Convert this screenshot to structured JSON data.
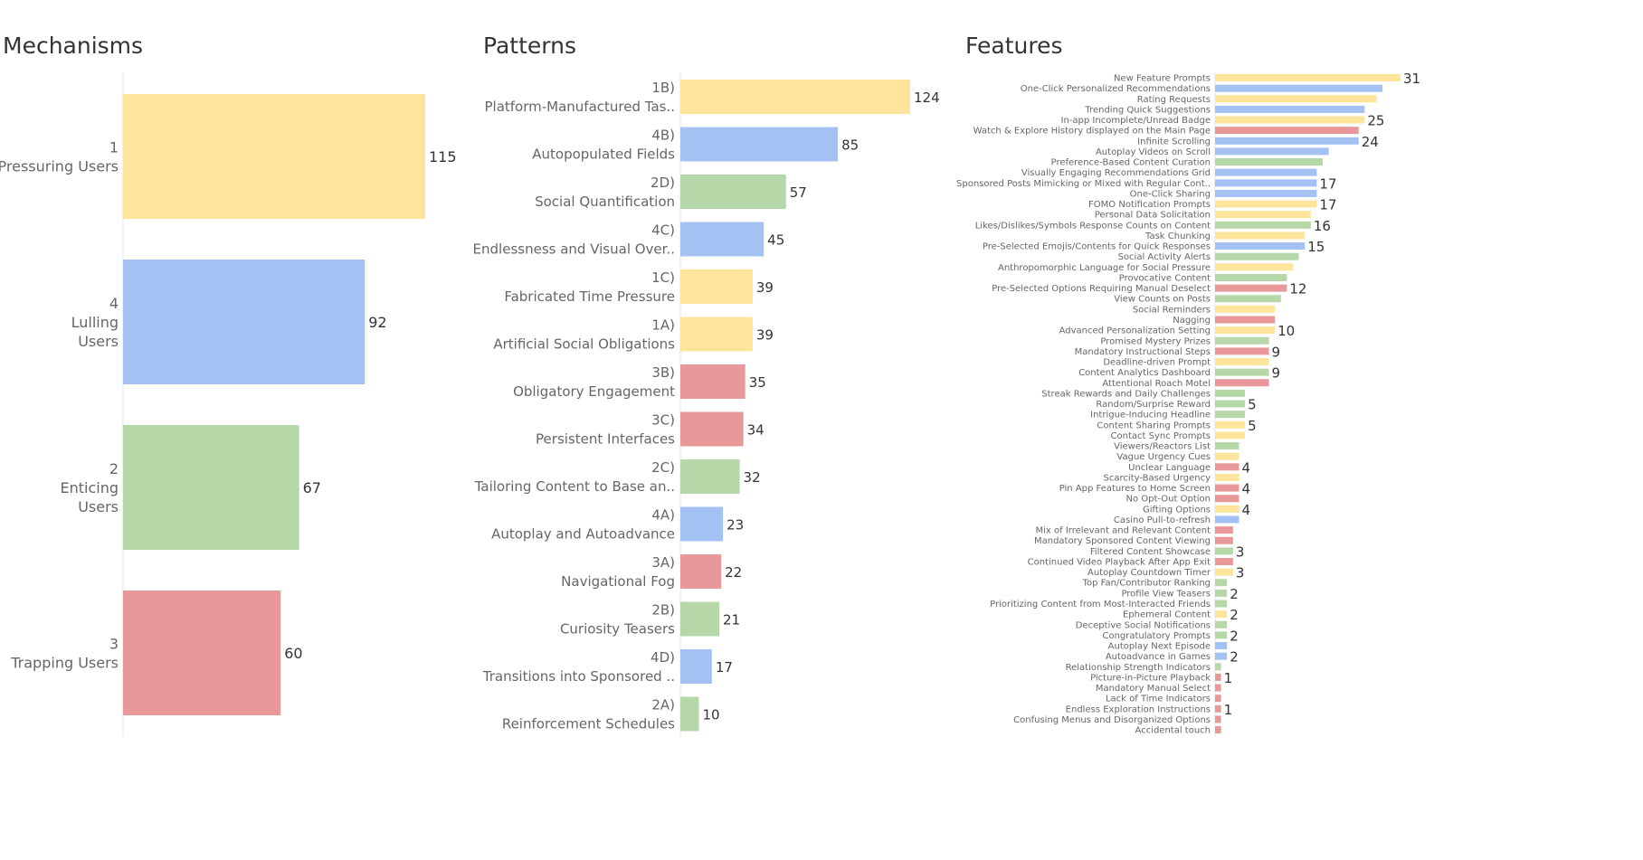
{
  "colors": {
    "pressuring": "#fee59b",
    "lulling": "#a4c1f4",
    "enticing": "#b6d7a8",
    "trapping": "#e89898",
    "axis": "#e6e6e6"
  },
  "chart_data": [
    {
      "type": "bar",
      "orientation": "horizontal",
      "title": "Mechanisms",
      "categories": [
        {
          "label": [
            "1",
            "Pressuring Users"
          ],
          "value": 115,
          "group": "pressuring"
        },
        {
          "label": [
            "4",
            "Lulling",
            "Users"
          ],
          "value": 92,
          "group": "lulling"
        },
        {
          "label": [
            "2",
            "Enticing",
            "Users"
          ],
          "value": 67,
          "group": "enticing"
        },
        {
          "label": [
            "3",
            "Trapping Users"
          ],
          "value": 60,
          "group": "trapping"
        }
      ]
    },
    {
      "type": "bar",
      "orientation": "horizontal",
      "title": "Patterns",
      "categories": [
        {
          "label": [
            "1B)",
            "Platform-Manufactured Tas.."
          ],
          "value": 124,
          "group": "pressuring"
        },
        {
          "label": [
            "4B)",
            "Autopopulated Fields"
          ],
          "value": 85,
          "group": "lulling"
        },
        {
          "label": [
            "2D)",
            "Social Quantification"
          ],
          "value": 57,
          "group": "enticing"
        },
        {
          "label": [
            "4C)",
            "Endlessness and Visual Over.."
          ],
          "value": 45,
          "group": "lulling"
        },
        {
          "label": [
            "1C)",
            "Fabricated Time Pressure"
          ],
          "value": 39,
          "group": "pressuring"
        },
        {
          "label": [
            "1A)",
            "Artificial Social Obligations"
          ],
          "value": 39,
          "group": "pressuring"
        },
        {
          "label": [
            "3B)",
            "Obligatory Engagement"
          ],
          "value": 35,
          "group": "trapping"
        },
        {
          "label": [
            "3C)",
            "Persistent Interfaces"
          ],
          "value": 34,
          "group": "trapping"
        },
        {
          "label": [
            "2C)",
            "Tailoring Content to Base an.."
          ],
          "value": 32,
          "group": "enticing"
        },
        {
          "label": [
            "4A)",
            "Autoplay and Autoadvance"
          ],
          "value": 23,
          "group": "lulling"
        },
        {
          "label": [
            "3A)",
            "Navigational Fog"
          ],
          "value": 22,
          "group": "trapping"
        },
        {
          "label": [
            "2B)",
            "Curiosity Teasers"
          ],
          "value": 21,
          "group": "enticing"
        },
        {
          "label": [
            "4D)",
            "Transitions into Sponsored .."
          ],
          "value": 17,
          "group": "lulling"
        },
        {
          "label": [
            "2A)",
            "Reinforcement Schedules"
          ],
          "value": 10,
          "group": "enticing"
        }
      ]
    },
    {
      "type": "bar",
      "orientation": "horizontal",
      "title": "Features",
      "categories": [
        {
          "label": "New Feature Prompts",
          "value": 31,
          "group": "pressuring",
          "show_value": "31"
        },
        {
          "label": "One-Click Personalized Recommendations",
          "value": 28,
          "group": "lulling"
        },
        {
          "label": "Rating Requests",
          "value": 27,
          "group": "pressuring"
        },
        {
          "label": "Trending Quick Suggestions",
          "value": 25,
          "group": "lulling"
        },
        {
          "label": "In-app Incomplete/Unread Badge",
          "value": 25,
          "group": "pressuring",
          "show_value": "25"
        },
        {
          "label": "Watch & Explore History displayed on the Main Page",
          "value": 24,
          "group": "trapping"
        },
        {
          "label": "Infinite Scrolling",
          "value": 24,
          "group": "lulling",
          "show_value": "24"
        },
        {
          "label": "Autoplay Videos on Scroll",
          "value": 19,
          "group": "lulling"
        },
        {
          "label": "Preference-Based Content Curation",
          "value": 18,
          "group": "enticing"
        },
        {
          "label": "Visually Engaging Recommendations Grid",
          "value": 17,
          "group": "lulling"
        },
        {
          "label": "Sponsored Posts Mimicking or Mixed with Regular Cont..",
          "value": 17,
          "group": "lulling",
          "show_value": "17"
        },
        {
          "label": "One-Click Sharing",
          "value": 17,
          "group": "lulling"
        },
        {
          "label": "FOMO Notification Prompts",
          "value": 17,
          "group": "pressuring",
          "show_value": "17"
        },
        {
          "label": "Personal Data Solicitation",
          "value": 16,
          "group": "pressuring"
        },
        {
          "label": "Likes/Dislikes/Symbols Response Counts on Content",
          "value": 16,
          "group": "enticing",
          "show_value": "16"
        },
        {
          "label": "Task Chunking",
          "value": 15,
          "group": "pressuring"
        },
        {
          "label": "Pre-Selected Emojis/Contents for Quick Responses",
          "value": 15,
          "group": "lulling",
          "show_value": "15"
        },
        {
          "label": "Social Activity Alerts",
          "value": 14,
          "group": "enticing"
        },
        {
          "label": "Anthropomorphic Language for Social Pressure",
          "value": 13,
          "group": "pressuring"
        },
        {
          "label": "Provocative Content",
          "value": 12,
          "group": "enticing"
        },
        {
          "label": "Pre-Selected Options Requiring Manual Deselect",
          "value": 12,
          "group": "trapping",
          "show_value": "12"
        },
        {
          "label": "View Counts on Posts",
          "value": 11,
          "group": "enticing"
        },
        {
          "label": "Social Reminders",
          "value": 10,
          "group": "pressuring"
        },
        {
          "label": "Nagging",
          "value": 10,
          "group": "trapping"
        },
        {
          "label": "Advanced Personalization Setting",
          "value": 10,
          "group": "pressuring",
          "show_value": "10"
        },
        {
          "label": "Promised Mystery Prizes",
          "value": 9,
          "group": "enticing"
        },
        {
          "label": "Mandatory Instructional Steps",
          "value": 9,
          "group": "trapping",
          "show_value": "9"
        },
        {
          "label": "Deadline-driven Prompt",
          "value": 9,
          "group": "pressuring"
        },
        {
          "label": "Content Analytics Dashboard",
          "value": 9,
          "group": "enticing",
          "show_value": "9"
        },
        {
          "label": "Attentional Roach Motel",
          "value": 9,
          "group": "trapping"
        },
        {
          "label": "Streak Rewards and Daily Challenges",
          "value": 5,
          "group": "enticing"
        },
        {
          "label": "Random/Surprise Reward",
          "value": 5,
          "group": "enticing",
          "show_value": "5"
        },
        {
          "label": "Intrigue-Inducing Headline",
          "value": 5,
          "group": "enticing"
        },
        {
          "label": "Content Sharing Prompts",
          "value": 5,
          "group": "pressuring",
          "show_value": "5"
        },
        {
          "label": "Contact Sync Prompts",
          "value": 5,
          "group": "pressuring"
        },
        {
          "label": "Viewers/Reactors List",
          "value": 4,
          "group": "enticing"
        },
        {
          "label": "Vague Urgency Cues",
          "value": 4,
          "group": "pressuring"
        },
        {
          "label": "Unclear Language",
          "value": 4,
          "group": "trapping",
          "show_value": "4"
        },
        {
          "label": "Scarcity-Based Urgency",
          "value": 4,
          "group": "pressuring"
        },
        {
          "label": "Pin App Features to Home Screen",
          "value": 4,
          "group": "trapping",
          "show_value": "4"
        },
        {
          "label": "No Opt-Out Option",
          "value": 4,
          "group": "trapping"
        },
        {
          "label": "Gifting Options",
          "value": 4,
          "group": "pressuring",
          "show_value": "4"
        },
        {
          "label": "Casino Pull-to-refresh",
          "value": 4,
          "group": "lulling"
        },
        {
          "label": "Mix of Irrelevant and Relevant Content",
          "value": 3,
          "group": "trapping"
        },
        {
          "label": "Mandatory Sponsored Content Viewing",
          "value": 3,
          "group": "trapping"
        },
        {
          "label": "Filtered Content Showcase",
          "value": 3,
          "group": "enticing",
          "show_value": "3"
        },
        {
          "label": "Continued Video Playback After App Exit",
          "value": 3,
          "group": "trapping"
        },
        {
          "label": "Autoplay Countdown Timer",
          "value": 3,
          "group": "pressuring",
          "show_value": "3"
        },
        {
          "label": "Top Fan/Contributor Ranking",
          "value": 2,
          "group": "enticing"
        },
        {
          "label": "Profile View Teasers",
          "value": 2,
          "group": "enticing",
          "show_value": "2"
        },
        {
          "label": "Prioritizing Content from Most-Interacted Friends",
          "value": 2,
          "group": "enticing"
        },
        {
          "label": "Ephemeral Content",
          "value": 2,
          "group": "pressuring",
          "show_value": "2"
        },
        {
          "label": "Deceptive Social Notifications",
          "value": 2,
          "group": "enticing"
        },
        {
          "label": "Congratulatory Prompts",
          "value": 2,
          "group": "enticing",
          "show_value": "2"
        },
        {
          "label": "Autoplay Next Episode",
          "value": 2,
          "group": "lulling"
        },
        {
          "label": "Autoadvance in Games",
          "value": 2,
          "group": "lulling",
          "show_value": "2"
        },
        {
          "label": "Relationship Strength Indicators",
          "value": 1,
          "group": "enticing"
        },
        {
          "label": "Picture-in-Picture Playback",
          "value": 1,
          "group": "trapping",
          "show_value": "1"
        },
        {
          "label": "Mandatory Manual Select",
          "value": 1,
          "group": "trapping"
        },
        {
          "label": "Lack of Time Indicators",
          "value": 1,
          "group": "trapping"
        },
        {
          "label": "Endless Exploration Instructions",
          "value": 1,
          "group": "trapping",
          "show_value": "1"
        },
        {
          "label": "Confusing Menus and Disorganized Options",
          "value": 1,
          "group": "trapping"
        },
        {
          "label": "Accidental touch",
          "value": 1,
          "group": "trapping"
        }
      ]
    }
  ]
}
